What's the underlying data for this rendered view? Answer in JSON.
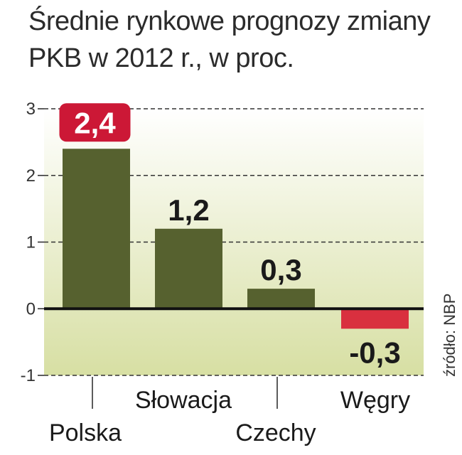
{
  "title_line1": "Średnie rynkowe prognozy zmiany",
  "title_line2": "PKB w 2012 r., w proc.",
  "source": "źródło: NBP",
  "colors": {
    "positive_bar": "#56612f",
    "negative_bar": "#d9303f",
    "highlight_label_bg": "#cc1836",
    "plot_bg_top": "#ffffff",
    "plot_bg_bottom": "#d7dfa3",
    "text": "#1a1a1a"
  },
  "chart_data": {
    "type": "bar",
    "categories": [
      "Polska",
      "Słowacja",
      "Czechy",
      "Węgry"
    ],
    "values": [
      2.4,
      1.2,
      0.3,
      -0.3
    ],
    "data_labels": [
      "2,4",
      "1,2",
      "0,3",
      "-0,3"
    ],
    "highlight_index": 0,
    "ylim": [
      -1,
      3
    ],
    "yticks": [
      3,
      2,
      1,
      0,
      -1
    ],
    "ytick_labels": [
      "3",
      "2",
      "1",
      "0",
      "-1"
    ],
    "grid": "dashed horizontal",
    "xlabel": "",
    "ylabel": ""
  }
}
